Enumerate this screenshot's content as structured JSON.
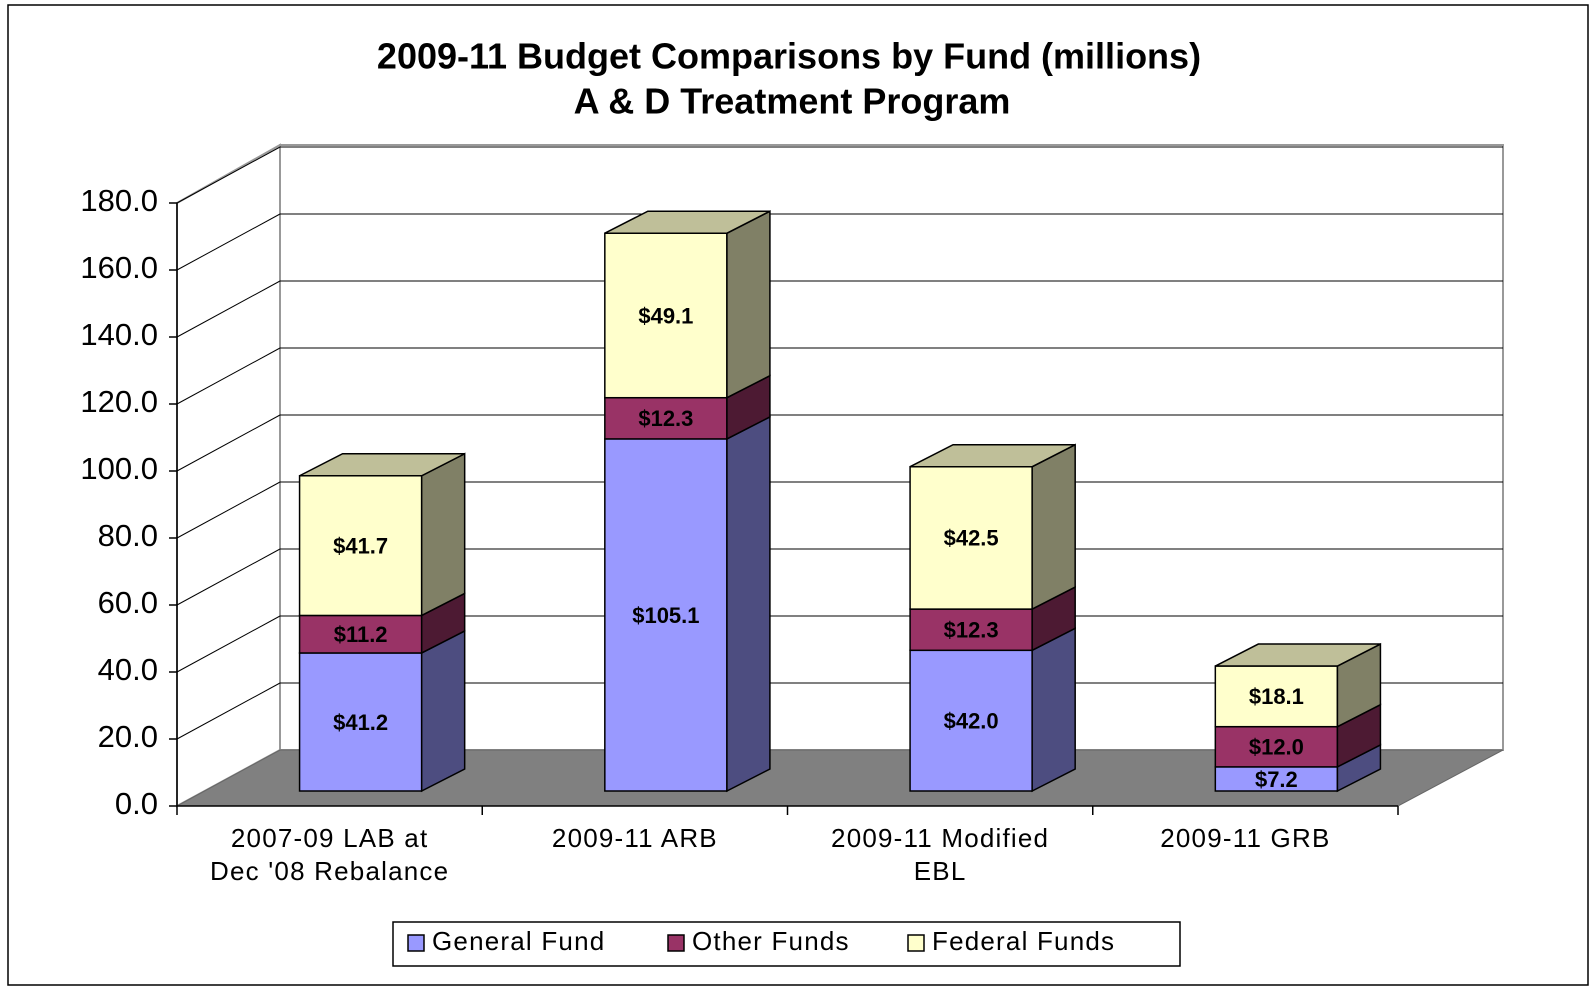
{
  "chart_data": {
    "type": "bar3d_stacked",
    "title": "2009-11 Budget Comparisons by Fund (millions)",
    "subtitle": "A & D Treatment Program",
    "categories": [
      "2007-09 LAB at\nDec '08 Rebalance",
      "2009-11 ARB",
      "2009-11 Modified\nEBL",
      "2009-11 GRB"
    ],
    "series": [
      {
        "name": "General Fund",
        "color": "#9999ff",
        "values": [
          41.2,
          105.1,
          42.0,
          7.2
        ],
        "value_labels": [
          "$41.2",
          "$105.1",
          "$42.0",
          "$7.2"
        ]
      },
      {
        "name": "Other Funds",
        "color": "#993366",
        "values": [
          11.2,
          12.3,
          12.3,
          12.0
        ],
        "value_labels": [
          "$11.2",
          "$12.3",
          "$12.3",
          "$12.0"
        ]
      },
      {
        "name": "Federal Funds",
        "color": "#ffffcc",
        "values": [
          41.7,
          49.1,
          42.5,
          18.1
        ],
        "value_labels": [
          "$41.7",
          "$49.1",
          "$42.5",
          "$18.1"
        ]
      }
    ],
    "ylim": [
      0,
      180
    ],
    "yticks": [
      {
        "value": 0,
        "label": "0.0"
      },
      {
        "value": 20,
        "label": "20.0"
      },
      {
        "value": 40,
        "label": "40.0"
      },
      {
        "value": 60,
        "label": "60.0"
      },
      {
        "value": 80,
        "label": "80.0"
      },
      {
        "value": 100,
        "label": "100.0"
      },
      {
        "value": 120,
        "label": "120.0"
      },
      {
        "value": 140,
        "label": "140.0"
      },
      {
        "value": 160,
        "label": "160.0"
      },
      {
        "value": 180,
        "label": "180.0"
      }
    ],
    "grid": true,
    "legend": "bottom"
  }
}
